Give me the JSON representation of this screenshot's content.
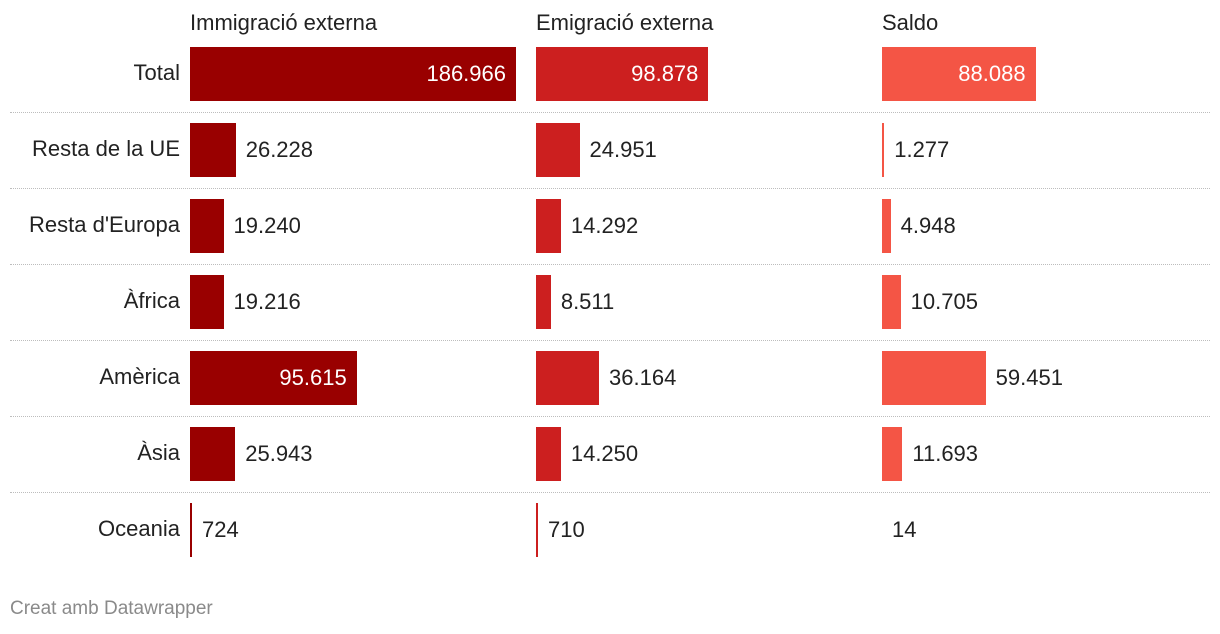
{
  "chart_data": {
    "type": "bar",
    "categories": [
      "Total",
      "Resta de la UE",
      "Resta d'Europa",
      "Àfrica",
      "Amèrica",
      "Àsia",
      "Oceania"
    ],
    "series": [
      {
        "name": "Immigració externa",
        "color": "#990000",
        "values": [
          186966,
          26228,
          19240,
          19216,
          95615,
          25943,
          724
        ],
        "labels": [
          "186.966",
          "26.228",
          "19.240",
          "19.216",
          "95.615",
          "25.943",
          "724"
        ]
      },
      {
        "name": "Emigració externa",
        "color": "#cc1f1f",
        "values": [
          98878,
          24951,
          14292,
          8511,
          36164,
          14250,
          710
        ],
        "labels": [
          "98.878",
          "24.951",
          "14.292",
          "8.511",
          "36.164",
          "14.250",
          "710"
        ]
      },
      {
        "name": "Saldo",
        "color": "#f45545",
        "values": [
          88088,
          1277,
          4948,
          10705,
          59451,
          11693,
          14
        ],
        "labels": [
          "88.088",
          "1.277",
          "4.948",
          "10.705",
          "59.451",
          "11.693",
          "14"
        ]
      }
    ],
    "xlim": [
      0,
      186966
    ]
  },
  "footer": {
    "credit": "Creat amb Datawrapper"
  }
}
